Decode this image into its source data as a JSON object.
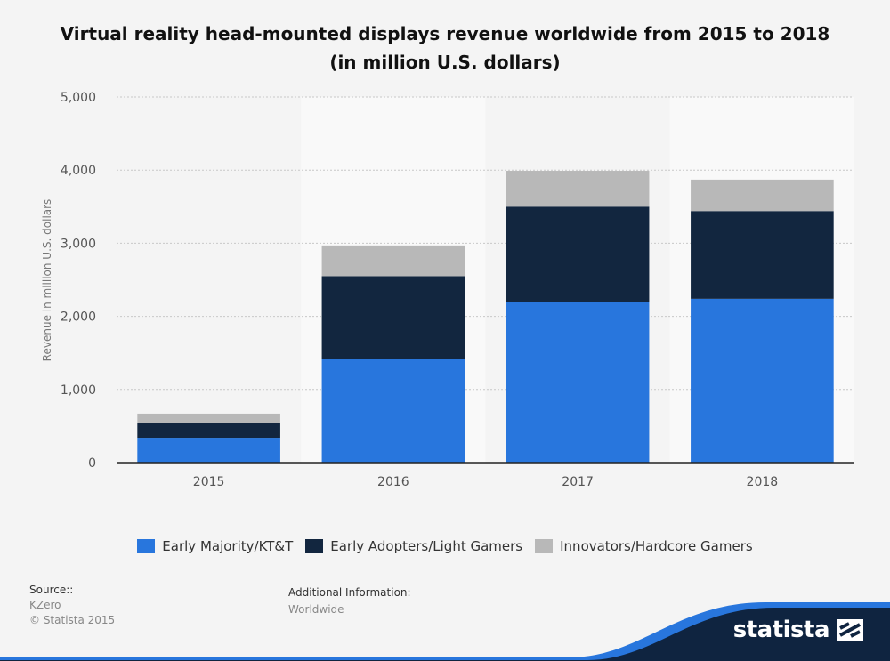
{
  "chart_data": {
    "type": "bar",
    "stacked": true,
    "title_line1": "Virtual reality head-mounted displays revenue worldwide from 2015 to 2018",
    "title_line2": "(in million U.S. dollars)",
    "ylabel": "Revenue in million U.S. dollars",
    "xlabel": "",
    "ylim": [
      0,
      5000
    ],
    "yticks": [
      "0",
      "1,000",
      "2,000",
      "3,000",
      "4,000",
      "5,000"
    ],
    "ytick_values": [
      0,
      1000,
      2000,
      3000,
      4000,
      5000
    ],
    "categories": [
      "2015",
      "2016",
      "2017",
      "2018"
    ],
    "series": [
      {
        "name": "Early Majority/KT&T",
        "color": "#2876dd",
        "values": [
          340,
          1420,
          2190,
          2240
        ]
      },
      {
        "name": "Early Adopters/Light Gamers",
        "color": "#12263f",
        "values": [
          200,
          1130,
          1310,
          1200
        ]
      },
      {
        "name": "Innovators/Hardcore Gamers",
        "color": "#b8b8b8",
        "values": [
          130,
          420,
          490,
          430
        ]
      }
    ],
    "grid": true,
    "legend_position": "bottom"
  },
  "source": {
    "label": "Source::",
    "name": "KZero",
    "copyright": "© Statista 2015"
  },
  "additional_info": {
    "label": "Additional Information:",
    "value": "Worldwide"
  },
  "brand": {
    "logo_text": "statista"
  }
}
